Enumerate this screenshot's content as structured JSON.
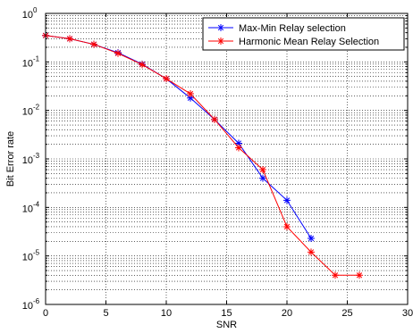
{
  "chart_data": {
    "type": "line",
    "title": "",
    "xlabel": "SNR",
    "ylabel": "Bit Error rate",
    "xlim": [
      0,
      30
    ],
    "ylim": [
      1e-06,
      1
    ],
    "yscale": "log",
    "grid": true,
    "legend_position": "top-right",
    "x_ticks": [
      {
        "value": 0,
        "label": "0"
      },
      {
        "value": 5,
        "label": "5"
      },
      {
        "value": 10,
        "label": "10"
      },
      {
        "value": 15,
        "label": "15"
      },
      {
        "value": 20,
        "label": "20"
      },
      {
        "value": 25,
        "label": "25"
      },
      {
        "value": 30,
        "label": "30"
      }
    ],
    "y_ticks": [
      {
        "exp": 0,
        "mantissa": "10",
        "superscript": "0"
      },
      {
        "exp": -1,
        "mantissa": "10",
        "superscript": "-1"
      },
      {
        "exp": -2,
        "mantissa": "10",
        "superscript": "-2"
      },
      {
        "exp": -3,
        "mantissa": "10",
        "superscript": "-3"
      },
      {
        "exp": -4,
        "mantissa": "10",
        "superscript": "-4"
      },
      {
        "exp": -5,
        "mantissa": "10",
        "superscript": "-5"
      },
      {
        "exp": -6,
        "mantissa": "10",
        "superscript": "-6"
      }
    ],
    "series": [
      {
        "name": "Max-Min Relay selection",
        "color": "#0000ff",
        "marker": "asterisk",
        "x": [
          0,
          2,
          4,
          6,
          8,
          10,
          12,
          14,
          16,
          18,
          20,
          22
        ],
        "y": [
          0.35,
          0.3,
          0.23,
          0.155,
          0.09,
          0.045,
          0.018,
          0.0065,
          0.0021,
          0.0004,
          0.00014,
          2.3e-05
        ]
      },
      {
        "name": "Harmonic Mean Relay Selection",
        "color": "#ff0000",
        "marker": "asterisk",
        "x": [
          0,
          2,
          4,
          6,
          8,
          10,
          12,
          14,
          16,
          18,
          20,
          22,
          24,
          26
        ],
        "y": [
          0.35,
          0.3,
          0.23,
          0.15,
          0.088,
          0.045,
          0.022,
          0.0065,
          0.0017,
          0.0006,
          4e-05,
          1.2e-05,
          4e-06,
          4e-06
        ]
      }
    ]
  }
}
